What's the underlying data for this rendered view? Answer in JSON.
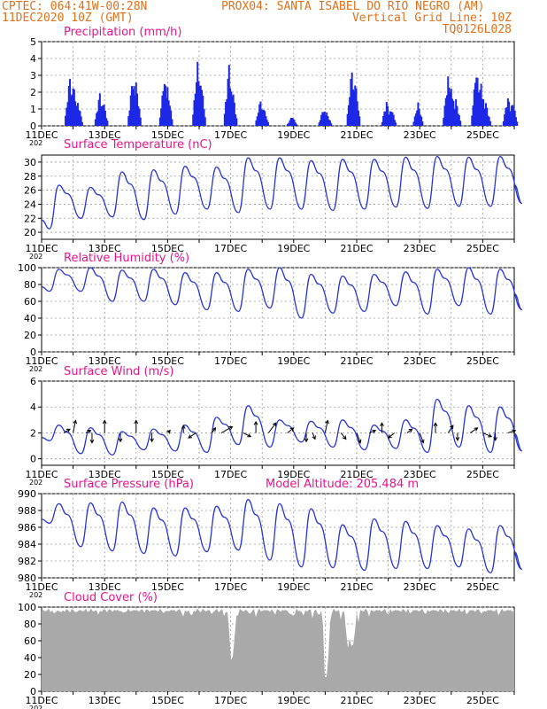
{
  "header": {
    "line1_left": "CPTEC:   064:41W-00:28N",
    "line1_right": "PROX04: SANTA ISABEL DO RIO NEGRO (AM)",
    "line2_left": "11DEC2020 10Z (GMT)",
    "line2_right": "Vertical Grid Line: 10Z",
    "line3_right": "TQ0126L028",
    "header_color": "#e0701a"
  },
  "colors": {
    "title": "#e8148c",
    "series": "#2838d8",
    "bar": "#1c28e6",
    "cloud_fill": "#a9a9a9",
    "grid": "#9a9a9a"
  },
  "x_ticks": [
    "11DEC",
    "13DEC",
    "15DEC",
    "17DEC",
    "19DEC",
    "21DEC",
    "23DEC",
    "25DEC"
  ],
  "x_range_days": [
    0,
    15
  ],
  "year_fragment": "202",
  "chart_data": [
    {
      "id": "precip",
      "type": "bar",
      "title": "Precipitation  (mm/h)",
      "ylim": [
        0,
        5
      ],
      "yticks": [
        0,
        1,
        2,
        3,
        4,
        5
      ],
      "peaks": [
        {
          "day": 0.9,
          "value": 3.0
        },
        {
          "day": 1.0,
          "value": 2.7
        },
        {
          "day": 1.15,
          "value": 1.5
        },
        {
          "day": 1.85,
          "value": 2.0
        },
        {
          "day": 1.95,
          "value": 1.6
        },
        {
          "day": 2.9,
          "value": 3.1
        },
        {
          "day": 3.0,
          "value": 2.6
        },
        {
          "day": 3.9,
          "value": 3.0
        },
        {
          "day": 4.0,
          "value": 2.3
        },
        {
          "day": 4.95,
          "value": 3.8
        },
        {
          "day": 5.05,
          "value": 3.0
        },
        {
          "day": 5.95,
          "value": 3.7
        },
        {
          "day": 6.05,
          "value": 2.4
        },
        {
          "day": 6.95,
          "value": 1.6
        },
        {
          "day": 7.05,
          "value": 1.1
        },
        {
          "day": 7.95,
          "value": 0.6
        },
        {
          "day": 8.95,
          "value": 1.1
        },
        {
          "day": 9.05,
          "value": 0.8
        },
        {
          "day": 9.85,
          "value": 3.5
        },
        {
          "day": 9.95,
          "value": 2.8
        },
        {
          "day": 10.95,
          "value": 1.5
        },
        {
          "day": 11.1,
          "value": 1.1
        },
        {
          "day": 11.95,
          "value": 1.4
        },
        {
          "day": 12.9,
          "value": 3.0
        },
        {
          "day": 13.0,
          "value": 2.5
        },
        {
          "day": 13.15,
          "value": 1.6
        },
        {
          "day": 13.8,
          "value": 3.6
        },
        {
          "day": 13.95,
          "value": 2.7
        },
        {
          "day": 14.1,
          "value": 1.4
        },
        {
          "day": 14.8,
          "value": 1.8
        },
        {
          "day": 14.95,
          "value": 1.5
        }
      ]
    },
    {
      "id": "temp",
      "type": "line",
      "title": "Surface Temperature (nC)",
      "ylim": [
        19,
        31
      ],
      "yticks": [
        20,
        22,
        24,
        26,
        28,
        30
      ],
      "minima": [
        20.5,
        22.0,
        22.2,
        21.8,
        22.6,
        23.3,
        22.8,
        23.3,
        23.3,
        23.1,
        23.3,
        23.6,
        23.4,
        23.7,
        23.7,
        24.1
      ],
      "maxima": [
        26.7,
        26.4,
        28.6,
        28.9,
        29.4,
        29.3,
        30.6,
        30.6,
        30.2,
        30.4,
        30.4,
        30.7,
        30.8,
        30.7,
        30.8
      ]
    },
    {
      "id": "rh",
      "type": "line",
      "title": "Relative Humidity  (%)",
      "ylim": [
        0,
        100
      ],
      "yticks": [
        0,
        20,
        40,
        60,
        80,
        100
      ],
      "minima": [
        72,
        72,
        60,
        60,
        56,
        50,
        48,
        52,
        40,
        46,
        48,
        55,
        45,
        55,
        45,
        50
      ],
      "maxima": [
        98,
        100,
        97,
        98,
        94,
        94,
        98,
        100,
        92,
        90,
        92,
        95,
        98,
        100,
        98
      ]
    },
    {
      "id": "wind",
      "type": "line",
      "title": "Surface Wind  (m/s)",
      "ylim": [
        -0.5,
        6
      ],
      "yticks": [
        0,
        2,
        4,
        6
      ],
      "minima": [
        1.4,
        0.4,
        0.3,
        0.7,
        0.6,
        0.5,
        1.1,
        0.9,
        1.3,
        0.9,
        0.7,
        0.8,
        0.5,
        0.9,
        0.5,
        0.6
      ],
      "maxima": [
        2.6,
        2.4,
        2.1,
        2.3,
        2.6,
        3.2,
        4.1,
        3.0,
        2.9,
        3.0,
        2.6,
        3.0,
        4.6,
        4.1,
        4.0
      ],
      "vectors": [
        {
          "day": 0.7,
          "u": 0.5,
          "v": 0.3
        },
        {
          "day": 1.0,
          "u": 0.2,
          "v": 1.0
        },
        {
          "day": 1.4,
          "u": 0.4,
          "v": 0.2
        },
        {
          "day": 1.6,
          "u": 0.0,
          "v": -0.8
        },
        {
          "day": 2.0,
          "u": 0.0,
          "v": 1.0
        },
        {
          "day": 2.5,
          "u": 0.0,
          "v": -0.7
        },
        {
          "day": 3.0,
          "u": 0.0,
          "v": 1.0
        },
        {
          "day": 3.5,
          "u": 0.0,
          "v": -0.7
        },
        {
          "day": 4.0,
          "u": 0.2,
          "v": 0.2
        },
        {
          "day": 4.5,
          "u": 0.0,
          "v": 0.6
        },
        {
          "day": 4.9,
          "u": -0.6,
          "v": -0.4
        },
        {
          "day": 5.4,
          "u": 0.3,
          "v": 0.4
        },
        {
          "day": 5.7,
          "u": 0.9,
          "v": 0.5
        },
        {
          "day": 6.4,
          "u": 0.6,
          "v": -0.3
        },
        {
          "day": 6.8,
          "u": 0.0,
          "v": 0.9
        },
        {
          "day": 7.2,
          "u": 0.6,
          "v": 0.8
        },
        {
          "day": 7.8,
          "u": 0.5,
          "v": 0.4
        },
        {
          "day": 8.4,
          "u": 0.0,
          "v": -0.7
        },
        {
          "day": 8.6,
          "u": 0.2,
          "v": -0.5
        },
        {
          "day": 9.0,
          "u": 0.2,
          "v": 1.0
        },
        {
          "day": 9.5,
          "u": 0.4,
          "v": -0.5
        },
        {
          "day": 10.0,
          "u": 0.3,
          "v": -0.8
        },
        {
          "day": 10.4,
          "u": 0.5,
          "v": 0.2
        },
        {
          "day": 10.8,
          "u": 0.0,
          "v": 0.8
        },
        {
          "day": 11.2,
          "u": -0.5,
          "v": -0.4
        },
        {
          "day": 11.6,
          "u": 0.4,
          "v": 0.3
        },
        {
          "day": 12.0,
          "u": 0.3,
          "v": -0.8
        },
        {
          "day": 12.5,
          "u": 0.0,
          "v": 0.8
        },
        {
          "day": 12.9,
          "u": 0.4,
          "v": 0.6
        },
        {
          "day": 13.2,
          "u": 0.0,
          "v": -0.6
        },
        {
          "day": 13.6,
          "u": 0.6,
          "v": 0.4
        },
        {
          "day": 14.0,
          "u": 0.7,
          "v": -0.3
        },
        {
          "day": 14.4,
          "u": 0.0,
          "v": -0.6
        },
        {
          "day": 14.8,
          "u": 0.6,
          "v": 0.2
        }
      ]
    },
    {
      "id": "pressure",
      "type": "line",
      "title": "Surface Pressure (hPa)",
      "annotation": "Model Altitude: 205.484  m",
      "ylim": [
        980,
        990
      ],
      "yticks": [
        980,
        982,
        984,
        986,
        988,
        990
      ],
      "minima": [
        986.5,
        983.7,
        983.2,
        982.9,
        982.6,
        983.1,
        983.3,
        982.1,
        981.3,
        981.2,
        980.9,
        981.1,
        981.1,
        981.3,
        980.6,
        981.0
      ],
      "maxima": [
        988.8,
        988.9,
        989.0,
        988.3,
        988.3,
        988.5,
        989.3,
        988.8,
        988.2,
        986.3,
        987.0,
        986.7,
        986.2,
        985.8,
        986.2
      ]
    },
    {
      "id": "cloud",
      "type": "area",
      "title": "Cloud Cover  (%)",
      "ylim": [
        0,
        100
      ],
      "yticks": [
        0,
        20,
        40,
        60,
        80,
        100
      ],
      "base_level": 96,
      "dips": [
        {
          "day": 0.4,
          "value": 92
        },
        {
          "day": 0.6,
          "value": 93
        },
        {
          "day": 1.1,
          "value": 93
        },
        {
          "day": 1.8,
          "value": 91
        },
        {
          "day": 2.6,
          "value": 92
        },
        {
          "day": 3.9,
          "value": 92
        },
        {
          "day": 4.5,
          "value": 88
        },
        {
          "day": 4.75,
          "value": 86
        },
        {
          "day": 5.4,
          "value": 91
        },
        {
          "day": 5.8,
          "value": 88
        },
        {
          "day": 5.95,
          "value": 84
        },
        {
          "day": 6.0,
          "value": 26
        },
        {
          "day": 6.06,
          "value": 30
        },
        {
          "day": 6.12,
          "value": 62
        },
        {
          "day": 6.2,
          "value": 86
        },
        {
          "day": 6.6,
          "value": 90
        },
        {
          "day": 6.8,
          "value": 88
        },
        {
          "day": 7.4,
          "value": 90
        },
        {
          "day": 7.9,
          "value": 88
        },
        {
          "day": 8.0,
          "value": 87
        },
        {
          "day": 8.3,
          "value": 88
        },
        {
          "day": 8.6,
          "value": 86
        },
        {
          "day": 8.8,
          "value": 88
        },
        {
          "day": 8.98,
          "value": 5
        },
        {
          "day": 9.04,
          "value": 8
        },
        {
          "day": 9.1,
          "value": 40
        },
        {
          "day": 9.16,
          "value": 82
        },
        {
          "day": 9.5,
          "value": 84
        },
        {
          "day": 9.7,
          "value": 30
        },
        {
          "day": 9.78,
          "value": 60
        },
        {
          "day": 9.86,
          "value": 20
        },
        {
          "day": 9.92,
          "value": 55
        },
        {
          "day": 10.05,
          "value": 80
        },
        {
          "day": 10.4,
          "value": 88
        },
        {
          "day": 11.0,
          "value": 90
        },
        {
          "day": 11.7,
          "value": 92
        },
        {
          "day": 12.2,
          "value": 91
        },
        {
          "day": 12.9,
          "value": 92
        },
        {
          "day": 13.5,
          "value": 90
        },
        {
          "day": 14.0,
          "value": 91
        },
        {
          "day": 14.5,
          "value": 90
        }
      ]
    }
  ]
}
